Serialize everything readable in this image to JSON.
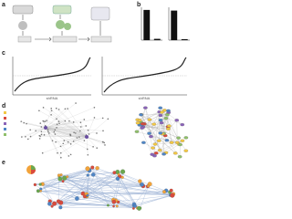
{
  "panels": {
    "a": {
      "letter": "a"
    },
    "b": {
      "letter": "b",
      "charts": [
        {
          "values": [
            0.92,
            0.04
          ],
          "ylim": [
            0,
            1
          ],
          "color": "#111111"
        },
        {
          "values": [
            0.9,
            0.03
          ],
          "ylim": [
            0,
            1
          ],
          "color": "#111111"
        }
      ]
    },
    "c": {
      "letter": "c",
      "x_label": "shRNA"
    },
    "d": {
      "letter": "d"
    },
    "e": {
      "letter": "e"
    }
  }
}
